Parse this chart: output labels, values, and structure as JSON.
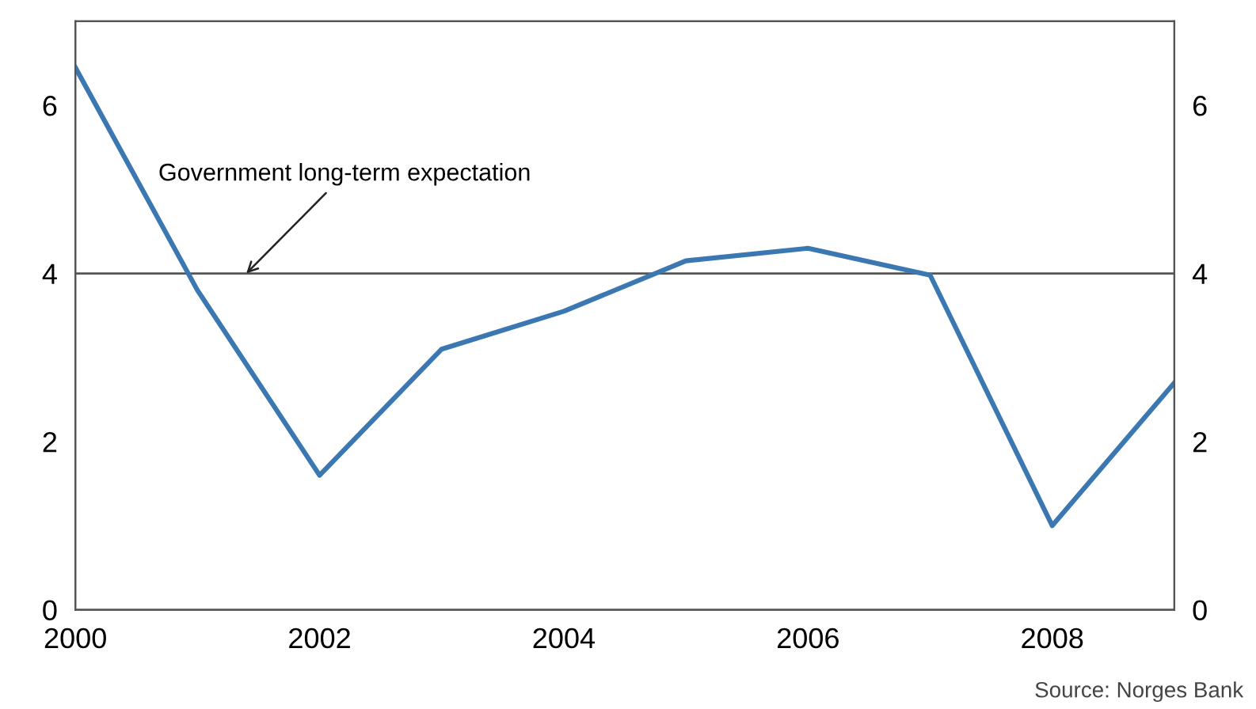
{
  "chart_data": {
    "type": "line",
    "x": [
      2000,
      2001,
      2002,
      2003,
      2004,
      2005,
      2006,
      2007,
      2008,
      2009
    ],
    "series": [
      {
        "color": "#3b78b2",
        "values": [
          6.45,
          3.8,
          1.6,
          3.1,
          3.55,
          4.15,
          4.3,
          3.98,
          1.0,
          2.7
        ]
      }
    ],
    "xlim": [
      2000,
      2009
    ],
    "xticks": [
      2000,
      2002,
      2004,
      2006,
      2008
    ],
    "ylim": [
      0,
      7
    ],
    "yticks": [
      0,
      2,
      4,
      6
    ],
    "y2lim": [
      0,
      7
    ],
    "y2ticks": [
      0,
      2,
      4,
      6
    ],
    "ref_lines": [
      {
        "axis": "y",
        "value": 4,
        "color": "#555555"
      }
    ],
    "annotations": [
      {
        "text": "Government long-term expectation",
        "x": 2001.4,
        "y": 4
      },
      "Source: Norges Bank"
    ],
    "grid": false,
    "legend": false,
    "marker": "none",
    "line_style": "solid"
  }
}
